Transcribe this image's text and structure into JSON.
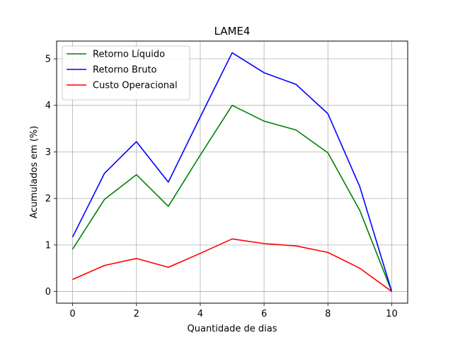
{
  "chart_data": {
    "type": "line",
    "title": "LAME4",
    "xlabel": "Quantidade de dias",
    "ylabel": "Acumulados em (%)",
    "x": [
      0,
      1,
      2,
      3,
      4,
      5,
      6,
      7,
      8,
      9,
      10
    ],
    "xlim": [
      -0.5,
      10.5
    ],
    "ylim": [
      -0.25,
      5.38
    ],
    "xticks": [
      "0",
      "2",
      "4",
      "6",
      "8",
      "10"
    ],
    "yticks": [
      "0",
      "1",
      "2",
      "3",
      "4",
      "5"
    ],
    "grid": true,
    "legend_position": "upper-left",
    "series": [
      {
        "name": "Retorno Líquido",
        "color": "#008000",
        "values": [
          0.91,
          1.98,
          2.51,
          1.83,
          2.93,
          4.0,
          3.66,
          3.47,
          2.98,
          1.74,
          0.0
        ]
      },
      {
        "name": "Retorno Bruto",
        "color": "#0000ff",
        "values": [
          1.17,
          2.54,
          3.22,
          2.35,
          3.75,
          5.13,
          4.7,
          4.45,
          3.82,
          2.25,
          0.0
        ]
      },
      {
        "name": "Custo Operacional",
        "color": "#ff0000",
        "values": [
          0.26,
          0.56,
          0.71,
          0.52,
          0.82,
          1.13,
          1.03,
          0.98,
          0.84,
          0.5,
          0.0
        ]
      }
    ]
  }
}
